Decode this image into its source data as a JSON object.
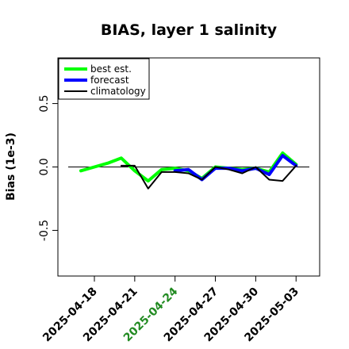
{
  "chart_data": {
    "type": "line",
    "title": "BIAS, layer 1 salinity",
    "xlabel": "",
    "ylabel": "Bias (1e-3)",
    "ylim": [
      -0.86,
      0.86
    ],
    "grid": false,
    "legend_position": "top-left",
    "reference_line": 0,
    "x_ticks": [
      "2025-04-18",
      "2025-04-21",
      "2025-04-24",
      "2025-04-27",
      "2025-04-30",
      "2025-05-03"
    ],
    "x_tick_colors": [
      "#000000",
      "#000000",
      "#228B22",
      "#000000",
      "#000000",
      "#000000"
    ],
    "y_ticks": [
      {
        "value": -0.5,
        "label": "-0.5"
      },
      {
        "value": 0.0,
        "label": "0.0"
      },
      {
        "value": 0.5,
        "label": "0.5"
      }
    ],
    "series": [
      {
        "name": "best est.",
        "color": "#00ff00",
        "x": [
          "2025-04-17",
          "2025-04-18",
          "2025-04-19",
          "2025-04-20",
          "2025-04-21",
          "2025-04-22",
          "2025-04-23",
          "2025-04-24",
          "2025-04-25",
          "2025-04-26",
          "2025-04-27",
          "2025-04-28",
          "2025-04-29",
          "2025-04-30",
          "2025-05-01",
          "2025-05-02",
          "2025-05-03"
        ],
        "values": [
          -0.03,
          0.0,
          0.03,
          0.07,
          -0.03,
          -0.11,
          -0.02,
          -0.01,
          -0.03,
          -0.09,
          0.0,
          -0.01,
          -0.02,
          -0.01,
          -0.04,
          0.11,
          0.02
        ]
      },
      {
        "name": "forecast",
        "color": "#0000ff",
        "x": [
          "2025-04-24",
          "2025-04-25",
          "2025-04-26",
          "2025-04-27",
          "2025-04-28",
          "2025-04-29",
          "2025-04-30",
          "2025-05-01",
          "2025-05-02",
          "2025-05-03"
        ],
        "values": [
          -0.03,
          -0.02,
          -0.1,
          -0.01,
          -0.01,
          -0.03,
          -0.01,
          -0.06,
          0.09,
          0.01
        ]
      },
      {
        "name": "climatology",
        "color": "#000000",
        "x": [
          "2025-04-20",
          "2025-04-21",
          "2025-04-22",
          "2025-04-23",
          "2025-04-24",
          "2025-04-25",
          "2025-04-26",
          "2025-04-27",
          "2025-04-28",
          "2025-04-29",
          "2025-04-30",
          "2025-05-01",
          "2025-05-02",
          "2025-05-03"
        ],
        "values": [
          0.01,
          0.01,
          -0.17,
          -0.04,
          -0.04,
          -0.05,
          -0.1,
          0.0,
          -0.02,
          -0.05,
          0.0,
          -0.1,
          -0.11,
          0.01
        ]
      }
    ]
  }
}
